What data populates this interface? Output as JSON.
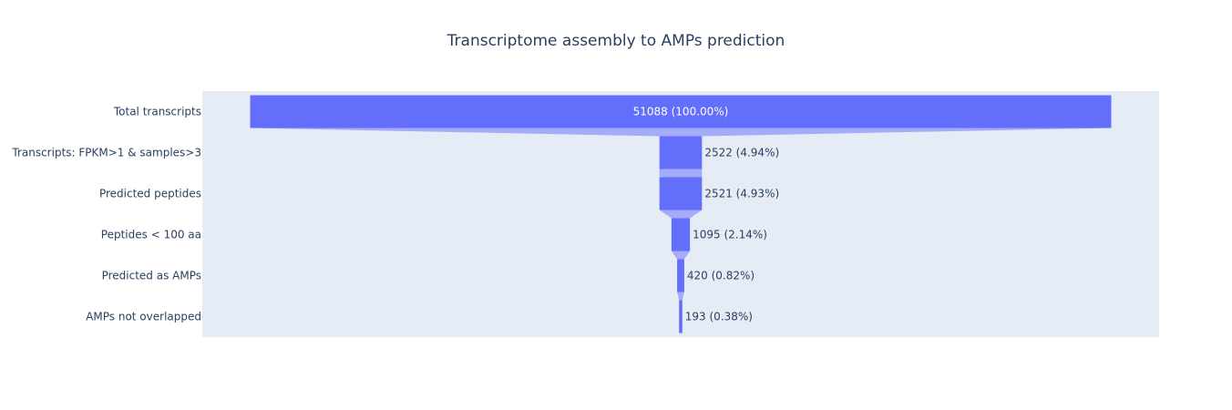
{
  "chart_data": {
    "type": "funnel",
    "title": "Transcriptome assembly to AMPs prediction",
    "categories": [
      "Total transcripts",
      "Transcripts: FPKM>1 & samples>3",
      "Predicted peptides",
      "Peptides < 100 aa",
      "Predicted as AMPs",
      "AMPs not overlapped"
    ],
    "values": [
      51088,
      2522,
      2521,
      1095,
      420,
      193
    ],
    "value_labels": [
      "51088 (100.00%)",
      "2522 (4.94%)",
      "2521 (4.93%)",
      "1095 (2.14%)",
      "420 (0.82%)",
      "193 (0.38%)"
    ],
    "xlabel": "",
    "ylabel": "",
    "grid": false,
    "legend": "none"
  },
  "colors": {
    "bar": "#636efa",
    "connector": "#a5abfb",
    "plot_background": "#e5ecf6",
    "text": "#2a3f5f",
    "label_inside": "#ffffff"
  }
}
